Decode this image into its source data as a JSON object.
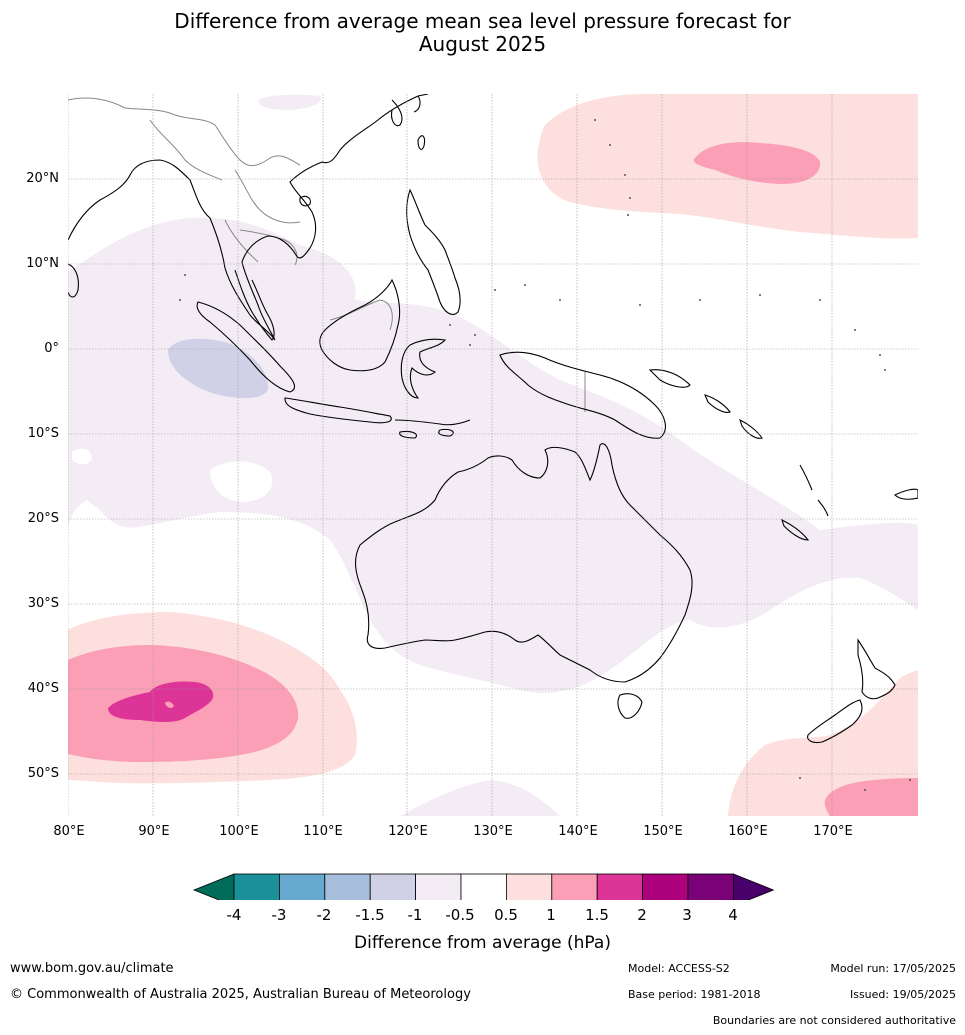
{
  "title": {
    "line1": "Difference from average mean sea level pressure forecast for",
    "line2": "August 2025"
  },
  "map": {
    "lat_labels": [
      "20°N",
      "10°N",
      "0°",
      "10°S",
      "20°S",
      "30°S",
      "40°S",
      "50°S"
    ],
    "lon_labels": [
      "80°E",
      "90°E",
      "100°E",
      "110°E",
      "120°E",
      "130°E",
      "140°E",
      "150°E",
      "160°E",
      "170°E"
    ],
    "colors": {
      "ocean": "#ffffff",
      "coastline": "#000000",
      "borders": "#888888",
      "grid": "#9a9a9a"
    },
    "regions": [
      {
        "name": "negative-anomaly-0.5-1",
        "range": "-1 to -0.5",
        "color": "#f3ecf5"
      },
      {
        "name": "negative-anomaly-1-1.5",
        "range": "-1.5 to -1",
        "color": "#d0d1e6"
      },
      {
        "name": "positive-anomaly-0.5-1",
        "range": "0.5 to 1",
        "color": "#fde0dd"
      },
      {
        "name": "positive-anomaly-1-1.5",
        "range": "1 to 1.5",
        "color": "#fa9fb5"
      },
      {
        "name": "positive-anomaly-1.5-2",
        "range": "1.5 to 2",
        "color": "#dd3497"
      }
    ]
  },
  "colorbar": {
    "colors": [
      "#016c59",
      "#1c9099",
      "#67a9cf",
      "#a6bddb",
      "#d0d1e6",
      "#f3ecf5",
      "#ffffff",
      "#fde0dd",
      "#fa9fb5",
      "#dd3497",
      "#ae017e",
      "#7a0177",
      "#49006a"
    ],
    "ticks": [
      "-4",
      "-3",
      "-2",
      "-1.5",
      "-1",
      "-0.5",
      "0.5",
      "1",
      "1.5",
      "2",
      "3",
      "4"
    ],
    "label": "Difference from average (hPa)"
  },
  "footer": {
    "website": "www.bom.gov.au/climate",
    "copyright": "© Commonwealth of Australia 2025, Australian Bureau of Meteorology",
    "model": "Model: ACCESS-S2",
    "base_period": "Base period: 1981-2018",
    "model_run": "Model run: 17/05/2025",
    "issued": "Issued: 19/05/2025",
    "disclaimer": "Boundaries are not considered authoritative"
  }
}
